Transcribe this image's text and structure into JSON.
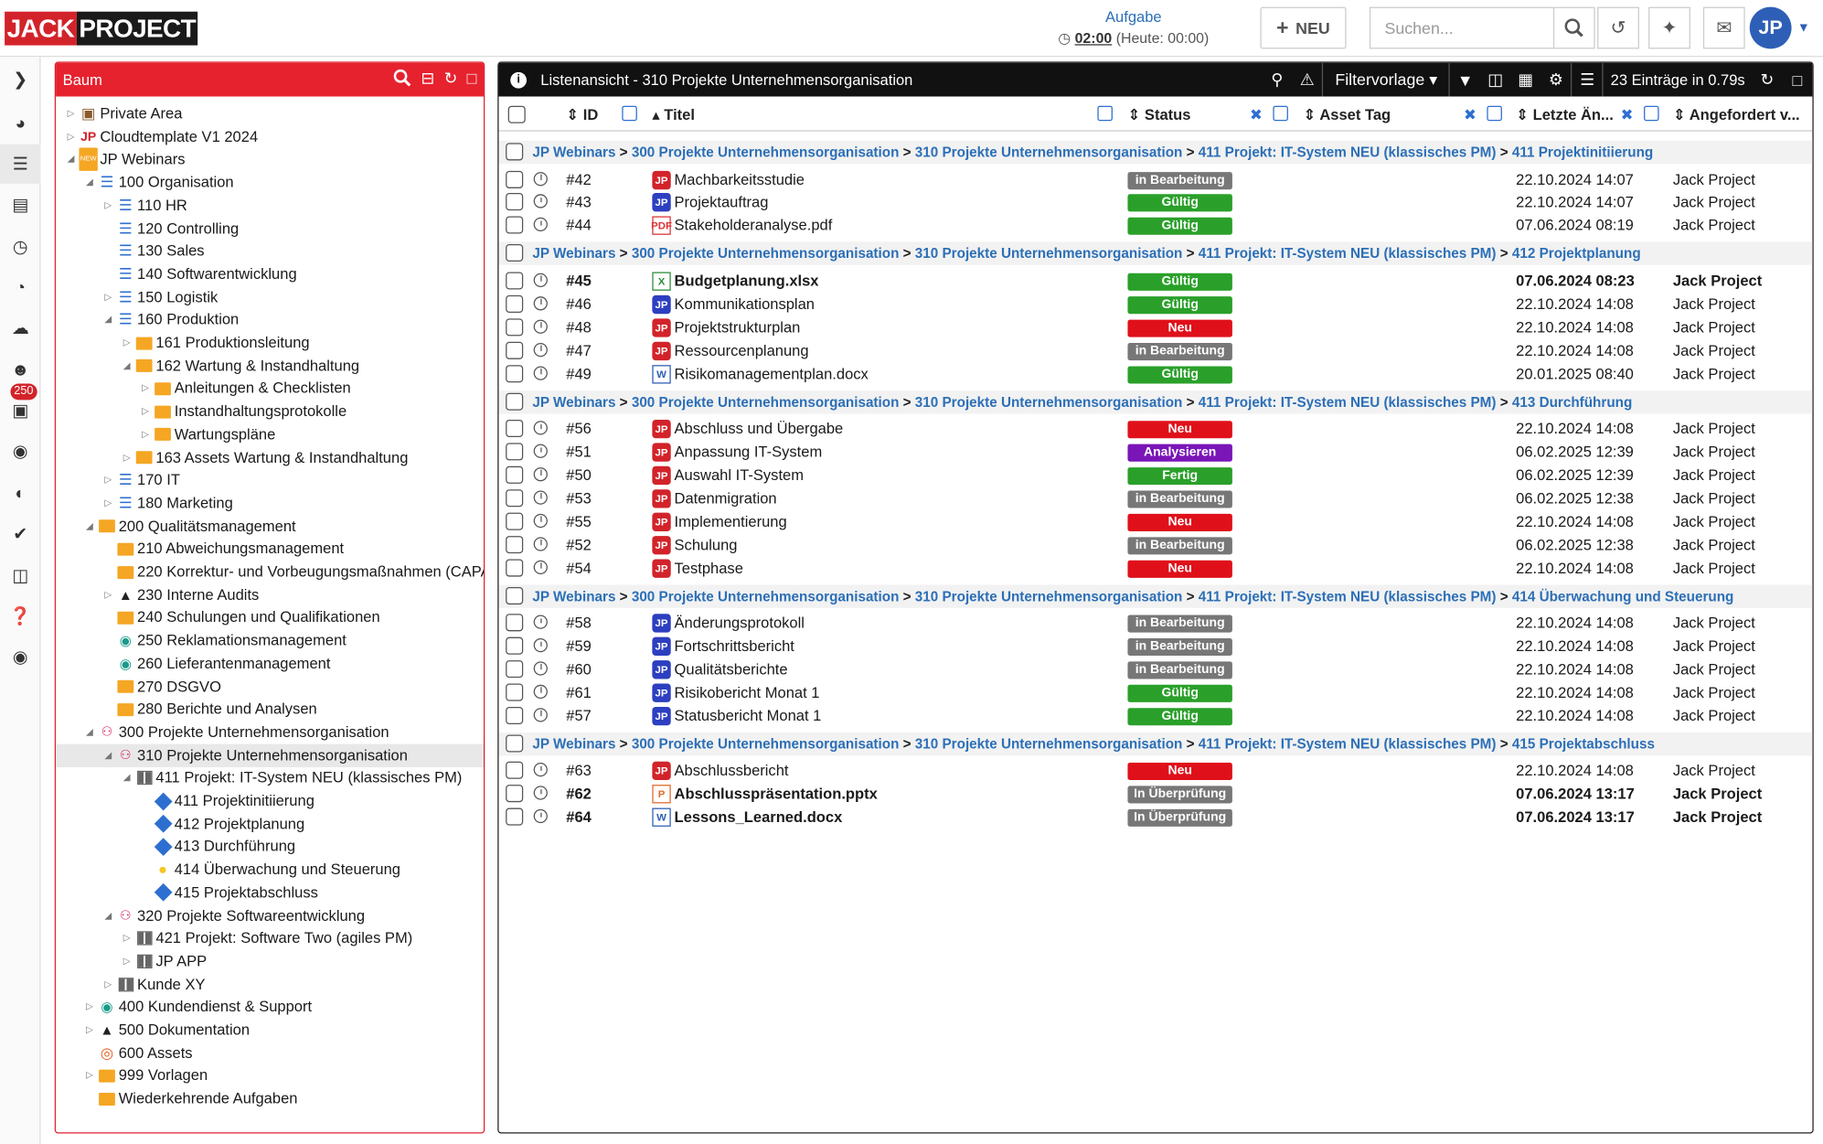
{
  "header": {
    "logo": {
      "part1": "JACK",
      "part2": "PROJECT"
    },
    "task_title": "Aufgabe",
    "task_time": "02:00",
    "task_today": "(Heute: 00:00)",
    "new_label": "NEU",
    "search_placeholder": "Suchen...",
    "avatar_initials": "JP"
  },
  "leftbar": {
    "badge": "250"
  },
  "tree": {
    "title": "Baum",
    "items": [
      {
        "label": "Private Area",
        "depth": 0,
        "caret": "closed",
        "icon": "lock"
      },
      {
        "label": "Cloudtemplate V1 2024",
        "depth": 0,
        "caret": "closed",
        "icon": "template"
      },
      {
        "label": "JP Webinars",
        "depth": 0,
        "caret": "open",
        "icon": "new"
      },
      {
        "label": "100 Organisation",
        "depth": 1,
        "caret": "open",
        "icon": "org"
      },
      {
        "label": "110 HR",
        "depth": 2,
        "caret": "closed",
        "icon": "org"
      },
      {
        "label": "120 Controlling",
        "depth": 2,
        "caret": "none",
        "icon": "org"
      },
      {
        "label": "130 Sales",
        "depth": 2,
        "caret": "none",
        "icon": "org"
      },
      {
        "label": "140 Softwarentwicklung",
        "depth": 2,
        "caret": "none",
        "icon": "org"
      },
      {
        "label": "150 Logistik",
        "depth": 2,
        "caret": "closed",
        "icon": "org"
      },
      {
        "label": "160 Produktion",
        "depth": 2,
        "caret": "open",
        "icon": "org"
      },
      {
        "label": "161 Produktionsleitung",
        "depth": 3,
        "caret": "closed",
        "icon": "folder"
      },
      {
        "label": "162 Wartung & Instandhaltung",
        "depth": 3,
        "caret": "open",
        "icon": "folder"
      },
      {
        "label": "Anleitungen & Checklisten",
        "depth": 4,
        "caret": "closed",
        "icon": "folder"
      },
      {
        "label": "Instandhaltungsprotokolle",
        "depth": 4,
        "caret": "closed",
        "icon": "folder"
      },
      {
        "label": "Wartungspläne",
        "depth": 4,
        "caret": "closed",
        "icon": "folder"
      },
      {
        "label": "163 Assets Wartung & Instandhaltung",
        "depth": 3,
        "caret": "closed",
        "icon": "folder"
      },
      {
        "label": "170 IT",
        "depth": 2,
        "caret": "closed",
        "icon": "org"
      },
      {
        "label": "180 Marketing",
        "depth": 2,
        "caret": "closed",
        "icon": "org"
      },
      {
        "label": "200 Qualitätsmanagement",
        "depth": 1,
        "caret": "open",
        "icon": "folder"
      },
      {
        "label": "210 Abweichungsmanagement",
        "depth": 2,
        "caret": "none",
        "icon": "folder"
      },
      {
        "label": "220 Korrektur- und Vorbeugungsmaßnahmen (CAPA",
        "depth": 2,
        "caret": "none",
        "icon": "folder"
      },
      {
        "label": "230 Interne Audits",
        "depth": 2,
        "caret": "closed",
        "icon": "grad"
      },
      {
        "label": "240 Schulungen und Qualifikationen",
        "depth": 2,
        "caret": "none",
        "icon": "folder"
      },
      {
        "label": "250 Reklamationsmanagement",
        "depth": 2,
        "caret": "none",
        "icon": "support"
      },
      {
        "label": "260 Lieferantenmanagement",
        "depth": 2,
        "caret": "none",
        "icon": "support"
      },
      {
        "label": "270 DSGVO",
        "depth": 2,
        "caret": "none",
        "icon": "folder"
      },
      {
        "label": "280 Berichte und Analysen",
        "depth": 2,
        "caret": "none",
        "icon": "folder"
      },
      {
        "label": "300 Projekte Unternehmensorganisation",
        "depth": 1,
        "caret": "open",
        "icon": "proj"
      },
      {
        "label": "310 Projekte Unternehmensorganisation",
        "depth": 2,
        "caret": "open",
        "icon": "proj",
        "selected": true
      },
      {
        "label": "411 Projekt: IT-System NEU (klassisches PM)",
        "depth": 3,
        "caret": "open",
        "icon": "grid"
      },
      {
        "label": "411 Projektinitiierung",
        "depth": 4,
        "caret": "none",
        "icon": "diamond"
      },
      {
        "label": "412 Projektplanung",
        "depth": 4,
        "caret": "none",
        "icon": "diamond"
      },
      {
        "label": "413 Durchführung",
        "depth": 4,
        "caret": "none",
        "icon": "diamond"
      },
      {
        "label": "414 Überwachung und Steuerung",
        "depth": 4,
        "caret": "none",
        "icon": "bulb"
      },
      {
        "label": "415 Projektabschluss",
        "depth": 4,
        "caret": "none",
        "icon": "diamond"
      },
      {
        "label": "320 Projekte Softwareentwicklung",
        "depth": 2,
        "caret": "open",
        "icon": "proj"
      },
      {
        "label": "421 Projekt: Software Two (agiles PM)",
        "depth": 3,
        "caret": "closed",
        "icon": "grid"
      },
      {
        "label": "JP APP",
        "depth": 3,
        "caret": "closed",
        "icon": "grid"
      },
      {
        "label": "Kunde XY",
        "depth": 2,
        "caret": "closed",
        "icon": "grid"
      },
      {
        "label": "400 Kundendienst & Support",
        "depth": 1,
        "caret": "closed",
        "icon": "support"
      },
      {
        "label": "500 Dokumentation",
        "depth": 1,
        "caret": "closed",
        "icon": "grad"
      },
      {
        "label": "600 Assets",
        "depth": 1,
        "caret": "none",
        "icon": "target"
      },
      {
        "label": "999 Vorlagen",
        "depth": 1,
        "caret": "closed",
        "icon": "folder"
      },
      {
        "label": "Wiederkehrende Aufgaben",
        "depth": 1,
        "caret": "none",
        "icon": "folder"
      }
    ]
  },
  "list": {
    "title": "Listenansicht - 310 Projekte Unternehmensorganisation",
    "filter_label": "Filtervorlage",
    "count_label": "23 Einträge in 0.79s",
    "columns": {
      "id": "ID",
      "title": "Titel",
      "status": "Status",
      "asset": "Asset Tag",
      "changed": "Letzte Än...",
      "requested": "Angefordert v..."
    },
    "path_common": [
      "JP Webinars",
      "300 Projekte Unternehmensorganisation",
      "310 Projekte Unternehmensorganisation",
      "411 Projekt: IT-System NEU (klassisches PM)"
    ],
    "groups": [
      {
        "last": "411 Projektinitiierung",
        "rows": [
          {
            "id": "#42",
            "title": "Machbarkeitsstudie",
            "file": "jp",
            "status": "in Bearbeitung",
            "st": "bear",
            "date": "22.10.2024 14:07",
            "by": "Jack Project",
            "bold": false
          },
          {
            "id": "#43",
            "title": "Projektauftrag",
            "file": "jpb",
            "status": "Gültig",
            "st": "gue",
            "date": "22.10.2024 14:07",
            "by": "Jack Project",
            "bold": false
          },
          {
            "id": "#44",
            "title": "Stakeholderanalyse.pdf",
            "file": "pdf",
            "status": "Gültig",
            "st": "gue",
            "date": "07.06.2024 08:19",
            "by": "Jack Project",
            "bold": false
          }
        ]
      },
      {
        "last": "412 Projektplanung",
        "rows": [
          {
            "id": "#45",
            "title": "Budgetplanung.xlsx",
            "file": "xls",
            "status": "Gültig",
            "st": "gue",
            "date": "07.06.2024 08:23",
            "by": "Jack Project",
            "bold": true
          },
          {
            "id": "#46",
            "title": "Kommunikationsplan",
            "file": "jpb",
            "status": "Gültig",
            "st": "gue",
            "date": "22.10.2024 14:08",
            "by": "Jack Project",
            "bold": false
          },
          {
            "id": "#48",
            "title": "Projektstrukturplan",
            "file": "jp",
            "status": "Neu",
            "st": "neu",
            "date": "22.10.2024 14:08",
            "by": "Jack Project",
            "bold": false
          },
          {
            "id": "#47",
            "title": "Ressourcenplanung",
            "file": "jp",
            "status": "in Bearbeitung",
            "st": "bear",
            "date": "22.10.2024 14:08",
            "by": "Jack Project",
            "bold": false
          },
          {
            "id": "#49",
            "title": "Risikomanagementplan.docx",
            "file": "doc",
            "status": "Gültig",
            "st": "gue",
            "date": "20.01.2025 08:40",
            "by": "Jack Project",
            "bold": false
          }
        ]
      },
      {
        "last": "413 Durchführung",
        "rows": [
          {
            "id": "#56",
            "title": "Abschluss und Übergabe",
            "file": "jp",
            "status": "Neu",
            "st": "neu",
            "date": "22.10.2024 14:08",
            "by": "Jack Project",
            "bold": false
          },
          {
            "id": "#51",
            "title": "Anpassung IT-System",
            "file": "jp",
            "status": "Analysieren",
            "st": "ana",
            "date": "06.02.2025 12:39",
            "by": "Jack Project",
            "bold": false
          },
          {
            "id": "#50",
            "title": "Auswahl IT-System",
            "file": "jp",
            "status": "Fertig",
            "st": "fer",
            "date": "06.02.2025 12:39",
            "by": "Jack Project",
            "bold": false
          },
          {
            "id": "#53",
            "title": "Datenmigration",
            "file": "jp",
            "status": "in Bearbeitung",
            "st": "bear",
            "date": "06.02.2025 12:38",
            "by": "Jack Project",
            "bold": false
          },
          {
            "id": "#55",
            "title": "Implementierung",
            "file": "jp",
            "status": "Neu",
            "st": "neu",
            "date": "22.10.2024 14:08",
            "by": "Jack Project",
            "bold": false
          },
          {
            "id": "#52",
            "title": "Schulung",
            "file": "jp",
            "status": "in Bearbeitung",
            "st": "bear",
            "date": "06.02.2025 12:38",
            "by": "Jack Project",
            "bold": false
          },
          {
            "id": "#54",
            "title": "Testphase",
            "file": "jp",
            "status": "Neu",
            "st": "neu",
            "date": "22.10.2024 14:08",
            "by": "Jack Project",
            "bold": false
          }
        ]
      },
      {
        "last": "414 Überwachung und Steuerung",
        "rows": [
          {
            "id": "#58",
            "title": "Änderungsprotokoll",
            "file": "jpb",
            "status": "in Bearbeitung",
            "st": "bear",
            "date": "22.10.2024 14:08",
            "by": "Jack Project",
            "bold": false
          },
          {
            "id": "#59",
            "title": "Fortschrittsbericht",
            "file": "jpb",
            "status": "in Bearbeitung",
            "st": "bear",
            "date": "22.10.2024 14:08",
            "by": "Jack Project",
            "bold": false
          },
          {
            "id": "#60",
            "title": "Qualitätsberichte",
            "file": "jpb",
            "status": "in Bearbeitung",
            "st": "bear",
            "date": "22.10.2024 14:08",
            "by": "Jack Project",
            "bold": false
          },
          {
            "id": "#61",
            "title": "Risikobericht Monat 1",
            "file": "jpb",
            "status": "Gültig",
            "st": "gue",
            "date": "22.10.2024 14:08",
            "by": "Jack Project",
            "bold": false
          },
          {
            "id": "#57",
            "title": "Statusbericht Monat 1",
            "file": "jpb",
            "status": "Gültig",
            "st": "gue",
            "date": "22.10.2024 14:08",
            "by": "Jack Project",
            "bold": false
          }
        ]
      },
      {
        "last": "415 Projektabschluss",
        "rows": [
          {
            "id": "#63",
            "title": "Abschlussbericht",
            "file": "jp",
            "status": "Neu",
            "st": "neu",
            "date": "22.10.2024 14:08",
            "by": "Jack Project",
            "bold": false
          },
          {
            "id": "#62",
            "title": "Abschlusspräsentation.pptx",
            "file": "ppt",
            "status": "In Überprüfung",
            "st": "ueb",
            "date": "07.06.2024 13:17",
            "by": "Jack Project",
            "bold": true
          },
          {
            "id": "#64",
            "title": "Lessons_Learned.docx",
            "file": "doc",
            "status": "In Überprüfung",
            "st": "ueb",
            "date": "07.06.2024 13:17",
            "by": "Jack Project",
            "bold": true
          }
        ]
      }
    ]
  }
}
